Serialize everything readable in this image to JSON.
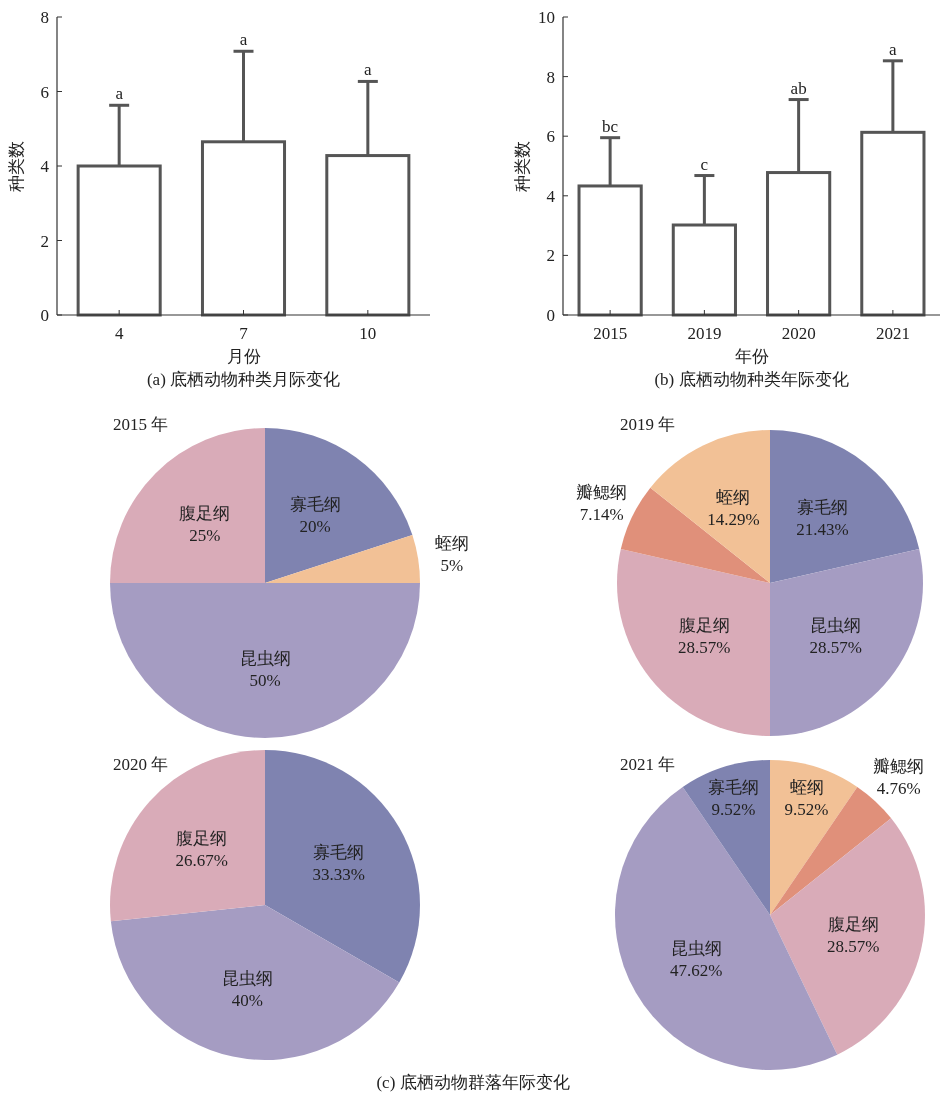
{
  "chart_data": [
    {
      "type": "bar",
      "xlabel": "月份",
      "ylabel": "种类数",
      "categories": [
        "4",
        "7",
        "10"
      ],
      "values": [
        4.0,
        4.65,
        4.28
      ],
      "errors": [
        [
          4.0,
          5.63
        ],
        [
          4.65,
          7.08
        ],
        [
          4.28,
          6.27
        ]
      ],
      "color": "#ffffff",
      "ylim": [
        0,
        8
      ],
      "yticks": [
        0,
        2,
        4,
        6,
        8
      ],
      "grid": false,
      "annotations": [
        {
          "text": "a",
          "x": "4",
          "y": 5.63
        },
        {
          "text": "a",
          "x": "7",
          "y": 7.08
        },
        {
          "text": "a",
          "x": "10",
          "y": 6.27
        },
        "(a) 底栖动物种类月际变化"
      ]
    },
    {
      "type": "bar",
      "xlabel": "年份",
      "ylabel": "种类数",
      "categories": [
        "2015",
        "2019",
        "2020",
        "2021"
      ],
      "values": [
        4.33,
        3.02,
        4.78,
        6.13
      ],
      "errors": [
        [
          4.33,
          5.95
        ],
        [
          3.02,
          4.68
        ],
        [
          4.78,
          7.23
        ],
        [
          6.13,
          8.53
        ]
      ],
      "color": "#ffffff",
      "ylim": [
        0,
        10
      ],
      "yticks": [
        0,
        2,
        4,
        6,
        8,
        10
      ],
      "grid": false,
      "annotations": [
        {
          "text": "bc",
          "x": "2015",
          "y": 5.95
        },
        {
          "text": "c",
          "x": "2019",
          "y": 4.68
        },
        {
          "text": "ab",
          "x": "2020",
          "y": 7.23
        },
        {
          "text": "a",
          "x": "2021",
          "y": 8.53
        },
        "(b) 底栖动物种类年际变化"
      ]
    },
    {
      "type": "pie",
      "title": "2015 年",
      "categories": [
        "寡毛纲",
        "蛭纲",
        "昆虫纲",
        "腹足纲"
      ],
      "values": [
        20,
        5,
        50,
        25
      ],
      "value_labels": [
        "20%",
        "5%",
        "50%",
        "25%"
      ],
      "colors": [
        "#7f83b0",
        "#f2c196",
        "#a59cc2",
        "#d9abb8"
      ]
    },
    {
      "type": "pie",
      "title": "2019 年",
      "categories": [
        "寡毛纲",
        "昆虫纲",
        "腹足纲",
        "瓣鳃纲",
        "蛭纲"
      ],
      "values": [
        21.43,
        28.57,
        28.57,
        7.14,
        14.29
      ],
      "value_labels": [
        "21.43%",
        "28.57%",
        "28.57%",
        "7.14%",
        "14.29%"
      ],
      "colors": [
        "#7f83b0",
        "#a59cc2",
        "#d9abb8",
        "#e0907a",
        "#f2c196"
      ]
    },
    {
      "type": "pie",
      "title": "2020 年",
      "categories": [
        "寡毛纲",
        "昆虫纲",
        "腹足纲"
      ],
      "values": [
        33.33,
        40,
        26.67
      ],
      "value_labels": [
        "33.33%",
        "40%",
        "26.67%"
      ],
      "colors": [
        "#7f83b0",
        "#a59cc2",
        "#d9abb8"
      ]
    },
    {
      "type": "pie",
      "title": "2021 年",
      "categories": [
        "蛭纲",
        "瓣鳃纲",
        "腹足纲",
        "昆虫纲",
        "寡毛纲"
      ],
      "values": [
        9.52,
        4.76,
        28.57,
        47.62,
        9.52
      ],
      "value_labels": [
        "9.52%",
        "4.76%",
        "28.57%",
        "47.62%",
        "9.52%"
      ],
      "colors": [
        "#f2c196",
        "#e0907a",
        "#d9abb8",
        "#a59cc2",
        "#7f83b0"
      ],
      "annotations": [
        "(c) 底栖动物群落年际变化"
      ]
    }
  ]
}
